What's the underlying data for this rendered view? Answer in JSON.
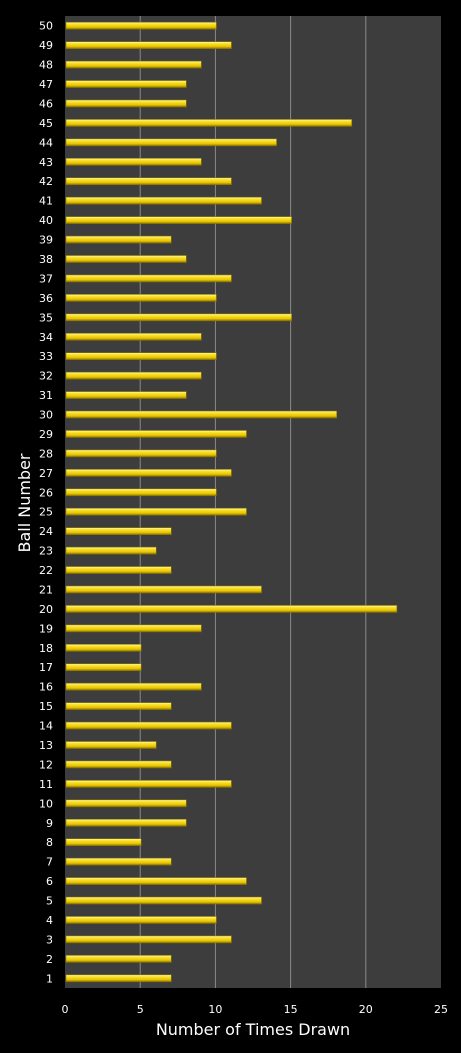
{
  "chart_data": {
    "type": "bar",
    "orientation": "horizontal",
    "xlabel": "Number of Times Drawn",
    "ylabel": "Ball Number",
    "xlim": [
      0,
      25
    ],
    "x_ticks": [
      "0",
      "5",
      "10",
      "15",
      "20",
      "25"
    ],
    "grid": "vertical",
    "colors": {
      "page": "#000000",
      "plot": "#3d3d3d",
      "grid": "#8a8a8a",
      "bar": "#f5d80e",
      "bar_highlight": "#fff27a",
      "bar_shadow": "#8a7400",
      "text": "#ffffff"
    },
    "categories": [
      "1",
      "2",
      "3",
      "4",
      "5",
      "6",
      "7",
      "8",
      "9",
      "10",
      "11",
      "12",
      "13",
      "14",
      "15",
      "16",
      "17",
      "18",
      "19",
      "20",
      "21",
      "22",
      "23",
      "24",
      "25",
      "26",
      "27",
      "28",
      "29",
      "30",
      "31",
      "32",
      "33",
      "34",
      "35",
      "36",
      "37",
      "38",
      "39",
      "40",
      "41",
      "42",
      "43",
      "44",
      "45",
      "46",
      "47",
      "48",
      "49",
      "50"
    ],
    "values": [
      7,
      7,
      11,
      10,
      13,
      12,
      7,
      5,
      8,
      8,
      11,
      7,
      6,
      11,
      7,
      9,
      5,
      5,
      9,
      22,
      13,
      7,
      6,
      7,
      12,
      10,
      11,
      10,
      12,
      18,
      8,
      9,
      10,
      9,
      15,
      10,
      11,
      8,
      7,
      15,
      13,
      11,
      9,
      14,
      19,
      8,
      8,
      9,
      11,
      10
    ]
  }
}
